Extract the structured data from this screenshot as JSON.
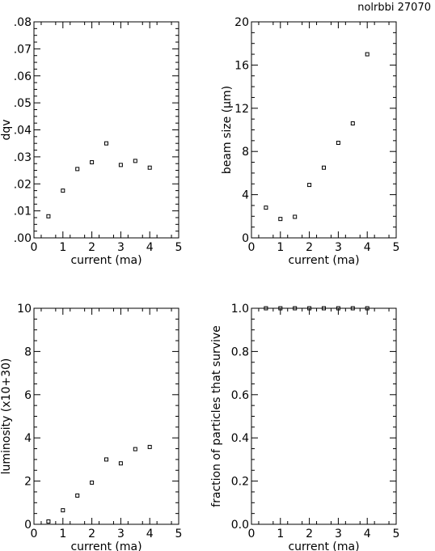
{
  "header_label": "nolrbbi 27070",
  "chart_data": [
    {
      "type": "scatter",
      "xlabel": "current (ma)",
      "ylabel": "dqv",
      "xlim": [
        0,
        5
      ],
      "ylim": [
        0,
        0.08
      ],
      "xticks": [
        "0",
        "1",
        "2",
        "3",
        "4",
        "5"
      ],
      "yticks": [
        ".00",
        ".01",
        ".02",
        ".03",
        ".04",
        ".05",
        ".06",
        ".07",
        ".08"
      ],
      "x": [
        0.5,
        1.0,
        1.5,
        2.0,
        2.5,
        3.0,
        3.5,
        4.0
      ],
      "y": [
        0.008,
        0.0175,
        0.0255,
        0.028,
        0.035,
        0.027,
        0.0285,
        0.026
      ]
    },
    {
      "type": "scatter",
      "xlabel": "current (ma)",
      "ylabel": "beam size (µm)",
      "xlim": [
        0,
        5
      ],
      "ylim": [
        0,
        20
      ],
      "xticks": [
        "0",
        "1",
        "2",
        "3",
        "4",
        "5"
      ],
      "yticks": [
        "0",
        "4",
        "8",
        "12",
        "16",
        "20"
      ],
      "x": [
        0.5,
        1.0,
        1.5,
        2.0,
        2.5,
        3.0,
        3.5,
        4.0
      ],
      "y": [
        2.8,
        1.75,
        1.95,
        4.9,
        6.5,
        8.8,
        10.6,
        17.0
      ]
    },
    {
      "type": "scatter",
      "xlabel": "current (ma)",
      "ylabel": "luminosity  (x10+30)",
      "xlim": [
        0,
        5
      ],
      "ylim": [
        0,
        10
      ],
      "xticks": [
        "0",
        "1",
        "2",
        "3",
        "4",
        "5"
      ],
      "yticks": [
        "0",
        "2",
        "4",
        "6",
        "8",
        "10"
      ],
      "x": [
        0.5,
        1.0,
        1.5,
        2.0,
        2.5,
        3.0,
        3.5,
        4.0
      ],
      "y": [
        0.13,
        0.65,
        1.33,
        1.93,
        3.0,
        2.82,
        3.48,
        3.58
      ]
    },
    {
      "type": "scatter",
      "xlabel": "current (ma)",
      "ylabel": "fraction of particles that survive",
      "xlim": [
        0,
        5
      ],
      "ylim": [
        0,
        1
      ],
      "xticks": [
        "0",
        "1",
        "2",
        "3",
        "4",
        "5"
      ],
      "yticks": [
        "0.0",
        "0.2",
        "0.4",
        "0.6",
        "0.8",
        "1.0"
      ],
      "x": [
        0.5,
        1.0,
        1.5,
        2.0,
        2.5,
        3.0,
        3.5,
        4.0
      ],
      "y": [
        1.0,
        1.0,
        1.0,
        1.0,
        1.0,
        1.0,
        1.0,
        1.0
      ]
    }
  ]
}
